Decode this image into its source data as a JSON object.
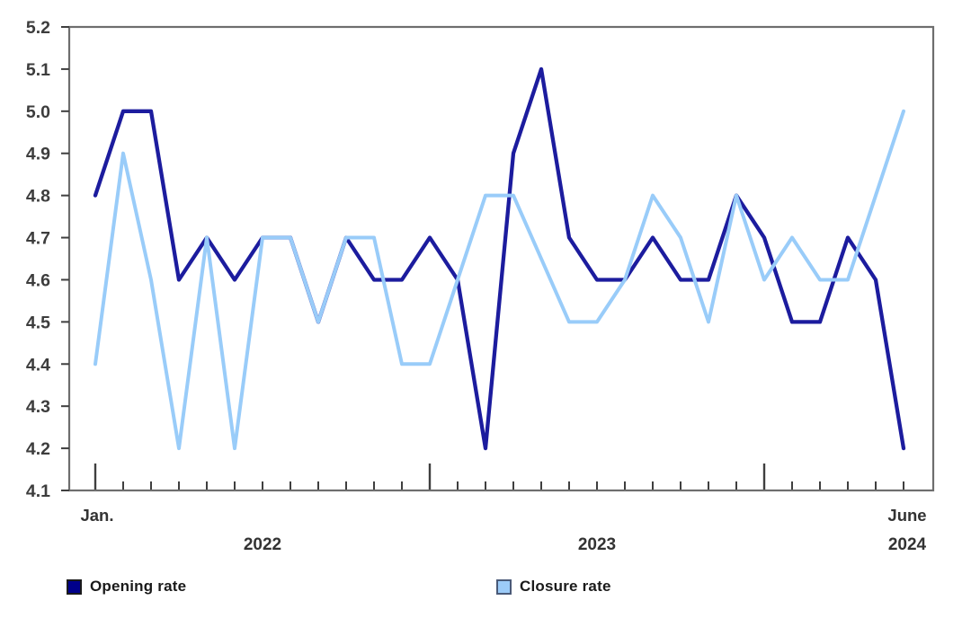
{
  "chart_data": {
    "type": "line",
    "title": "",
    "x": [
      "2022-01",
      "2022-02",
      "2022-03",
      "2022-04",
      "2022-05",
      "2022-06",
      "2022-07",
      "2022-08",
      "2022-09",
      "2022-10",
      "2022-11",
      "2022-12",
      "2023-01",
      "2023-02",
      "2023-03",
      "2023-04",
      "2023-05",
      "2023-06",
      "2023-07",
      "2023-08",
      "2023-09",
      "2023-10",
      "2023-11",
      "2023-12",
      "2024-01",
      "2024-02",
      "2024-03",
      "2024-04",
      "2024-05",
      "2024-06"
    ],
    "series": [
      {
        "name": "Opening rate",
        "line_color": "#1C1C9E",
        "swatch_fill": "#00008B",
        "swatch_border": "#1b1b1b",
        "values": [
          4.8,
          5.0,
          5.0,
          4.6,
          4.7,
          4.6,
          4.7,
          4.7,
          4.5,
          4.7,
          4.6,
          4.6,
          4.7,
          4.6,
          4.2,
          4.9,
          5.1,
          4.7,
          4.6,
          4.6,
          4.7,
          4.6,
          4.6,
          4.8,
          4.7,
          4.5,
          4.5,
          4.7,
          4.6,
          4.2
        ]
      },
      {
        "name": "Closure rate",
        "line_color": "#99CCF9",
        "swatch_fill": "#9CCBF8",
        "swatch_border": "#4A5A78",
        "values": [
          4.4,
          4.9,
          4.6,
          4.2,
          4.7,
          4.2,
          4.7,
          4.7,
          4.5,
          4.7,
          4.7,
          4.4,
          4.4,
          4.6,
          4.8,
          4.8,
          4.65,
          4.5,
          4.5,
          4.6,
          4.8,
          4.7,
          4.5,
          4.8,
          4.6,
          4.7,
          4.6,
          4.6,
          4.8,
          5.0
        ]
      }
    ],
    "ylim": [
      4.1,
      5.2
    ],
    "yticks": [
      "5.2",
      "5.1",
      "5.0",
      "4.9",
      "4.8",
      "4.7",
      "4.6",
      "4.5",
      "4.4",
      "4.3",
      "4.2",
      "4.1"
    ],
    "xaxis": {
      "start_label": "Jan.",
      "year_labels": [
        "2022",
        "2023"
      ],
      "end_label_line1": "June",
      "end_label_line2": "2024"
    },
    "grid": false,
    "legend_position": "bottom",
    "axis_color": "#6e6e6e",
    "tick_color": "#3f3f3f",
    "tick_label_color": "#3d3d3d"
  }
}
